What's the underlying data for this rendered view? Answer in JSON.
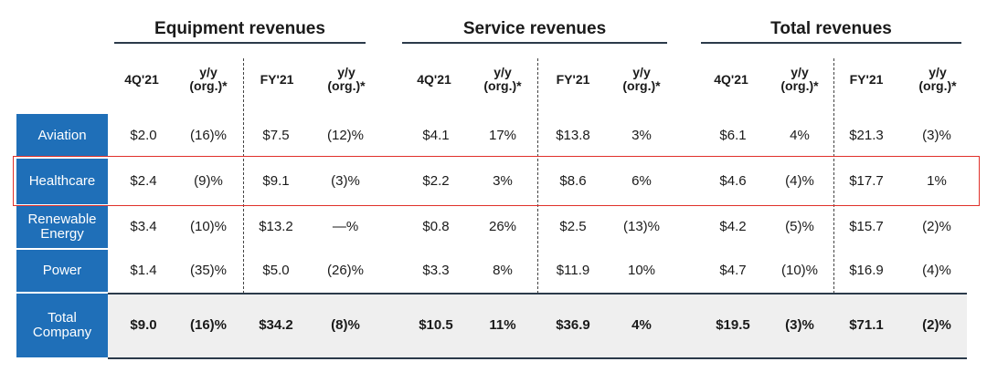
{
  "groups": [
    {
      "title": "Equipment revenues"
    },
    {
      "title": "Service revenues"
    },
    {
      "title": "Total revenues"
    }
  ],
  "col_headers": {
    "period_q": "4Q'21",
    "yoy_line1": "y/y",
    "yoy_line2": "(org.)*",
    "period_fy": "FY'21"
  },
  "rows": [
    {
      "label": "Aviation",
      "values": [
        "$2.0",
        "(16)%",
        "$7.5",
        "(12)%",
        "$4.1",
        "17%",
        "$13.8",
        "3%",
        "$6.1",
        "4%",
        "$21.3",
        "(3)%"
      ]
    },
    {
      "label": "Healthcare",
      "values": [
        "$2.4",
        "(9)%",
        "$9.1",
        "(3)%",
        "$2.2",
        "3%",
        "$8.6",
        "6%",
        "$4.6",
        "(4)%",
        "$17.7",
        "1%"
      ]
    },
    {
      "label_line1": "Renewable",
      "label_line2": "Energy",
      "values": [
        "$3.4",
        "(10)%",
        "$13.2",
        "—%",
        "$0.8",
        "26%",
        "$2.5",
        "(13)%",
        "$4.2",
        "(5)%",
        "$15.7",
        "(2)%"
      ]
    },
    {
      "label": "Power",
      "values": [
        "$1.4",
        "(35)%",
        "$5.0",
        "(26)%",
        "$3.3",
        "8%",
        "$11.9",
        "10%",
        "$4.7",
        "(10)%",
        "$16.9",
        "(4)%"
      ]
    },
    {
      "label_line1": "Total",
      "label_line2": "Company",
      "values": [
        "$9.0",
        "(16)%",
        "$34.2",
        "(8)%",
        "$10.5",
        "11%",
        "$36.9",
        "4%",
        "$19.5",
        "(3)%",
        "$71.1",
        "(2)%"
      ]
    }
  ],
  "highlighted_row": "Healthcare",
  "colors": {
    "sidebar": "#1f6fb8",
    "highlight_border": "#e0302a",
    "total_bg": "#efefef"
  }
}
